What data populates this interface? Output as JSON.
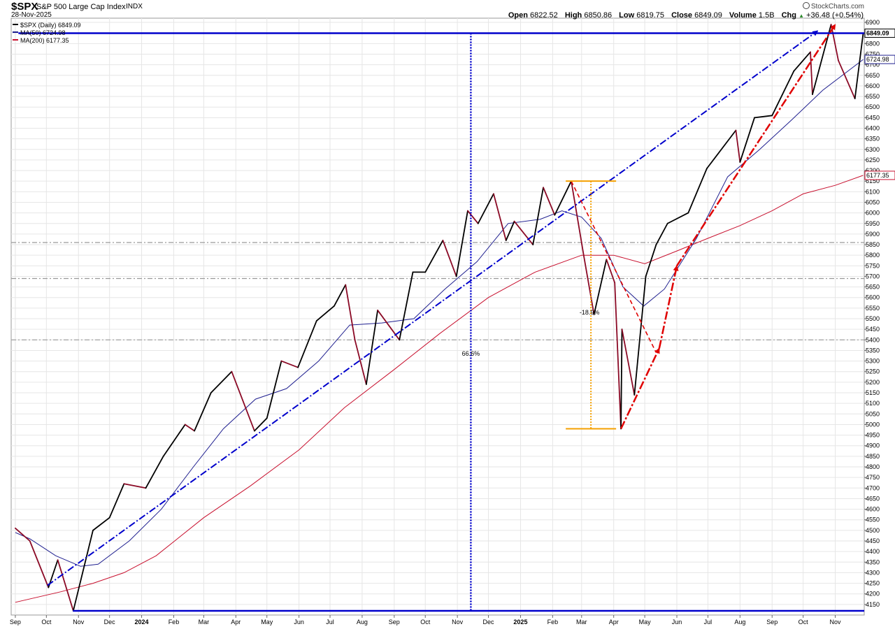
{
  "header": {
    "symbol": "$SPX",
    "description": "S&P 500 Large Cap Index",
    "exchange": "INDX",
    "date": "28-Nov-2025",
    "brand": "StockCharts.com",
    "open_label": "Open",
    "open": "6822.52",
    "high_label": "High",
    "high": "6850.86",
    "low_label": "Low",
    "low": "6819.75",
    "close_label": "Close",
    "close": "6849.09",
    "volume_label": "Volume",
    "volume": "1.5B",
    "chg_label": "Chg",
    "chg": "+36.48 (+0.54%)",
    "chg_icon": "up-triangle-icon"
  },
  "legend": [
    {
      "text": "$SPX (Daily) 6849.09",
      "color": "#000000"
    },
    {
      "text": "MA(50) 6724.98",
      "color": "#1f1f8f"
    },
    {
      "text": "MA(200) 6177.35",
      "color": "#c8102e"
    }
  ],
  "colors": {
    "price_up": "#000000",
    "price_down": "#8b0a26",
    "ma50": "#1f1f8f",
    "ma200": "#c8102e",
    "trend_blue": "#0000cc",
    "red_annot": "#e00000",
    "orange": "#f4a000",
    "grid": "#e6e6e6"
  },
  "chart_data": {
    "type": "line",
    "title": "$SPX",
    "xlabel": "",
    "ylabel": "",
    "x_ticks": [
      "Sep",
      "Oct",
      "Nov",
      "Dec",
      "2024",
      "Feb",
      "Mar",
      "Apr",
      "May",
      "Jun",
      "Jul",
      "Aug",
      "Sep",
      "Oct",
      "Nov",
      "Dec",
      "2025",
      "Feb",
      "Mar",
      "Apr",
      "May",
      "Jun",
      "Jul",
      "Aug",
      "Sep",
      "Oct",
      "Nov"
    ],
    "y_ticks": [
      "6900",
      "6850",
      "6800",
      "6750",
      "6700",
      "6650",
      "6600",
      "6550",
      "6500",
      "6450",
      "6400",
      "6350",
      "6300",
      "6250",
      "6200",
      "6150",
      "6100",
      "6050",
      "6000",
      "5950",
      "5900",
      "5850",
      "5800",
      "5750",
      "5700",
      "5650",
      "5600",
      "5550",
      "5500",
      "5450",
      "5400",
      "5350",
      "5300",
      "5250",
      "5200",
      "5150",
      "5100",
      "5050",
      "5000",
      "4950",
      "4900",
      "4850",
      "4800",
      "4750",
      "4700",
      "4650",
      "4600",
      "4550",
      "4500",
      "4450",
      "4400",
      "4350",
      "4300",
      "4250",
      "4200",
      "4150"
    ],
    "ylim": [
      4100,
      6920
    ],
    "grid": true,
    "legend_position": "top-left",
    "series": [
      {
        "name": "$SPX (Daily) 6849.09",
        "x": [
          "2023-09-01",
          "2023-09-15",
          "2023-10-03",
          "2023-10-12",
          "2023-10-27",
          "2023-11-15",
          "2023-12-01",
          "2023-12-15",
          "2024-01-05",
          "2024-01-22",
          "2024-02-12",
          "2024-02-21",
          "2024-03-08",
          "2024-03-28",
          "2024-04-19",
          "2024-05-01",
          "2024-05-15",
          "2024-05-31",
          "2024-06-18",
          "2024-07-05",
          "2024-07-16",
          "2024-07-25",
          "2024-08-05",
          "2024-08-16",
          "2024-09-06",
          "2024-09-19",
          "2024-10-01",
          "2024-10-18",
          "2024-10-31",
          "2024-11-11",
          "2024-11-21",
          "2024-12-06",
          "2024-12-18",
          "2024-12-26",
          "2025-01-13",
          "2025-01-23",
          "2025-02-03",
          "2025-02-19",
          "2025-03-03",
          "2025-03-13",
          "2025-03-25",
          "2025-04-02",
          "2025-04-08",
          "2025-04-09",
          "2025-04-21",
          "2025-05-02",
          "2025-05-12",
          "2025-05-23",
          "2025-06-12",
          "2025-06-30",
          "2025-07-28",
          "2025-08-01",
          "2025-08-15",
          "2025-09-01",
          "2025-09-22",
          "2025-10-08",
          "2025-10-10",
          "2025-10-28",
          "2025-11-04",
          "2025-11-20",
          "2025-11-28"
        ],
        "y": [
          4510,
          4450,
          4230,
          4360,
          4120,
          4500,
          4560,
          4720,
          4700,
          4850,
          5000,
          4970,
          5150,
          5250,
          4970,
          5030,
          5300,
          5270,
          5490,
          5560,
          5660,
          5400,
          5190,
          5540,
          5400,
          5720,
          5720,
          5870,
          5700,
          6010,
          5950,
          6090,
          5870,
          5960,
          5850,
          6120,
          5990,
          6150,
          5800,
          5520,
          5780,
          5670,
          4980,
          5450,
          5140,
          5700,
          5850,
          5950,
          6000,
          6210,
          6390,
          6240,
          6450,
          6460,
          6670,
          6760,
          6560,
          6890,
          6720,
          6540,
          6849.09
        ]
      },
      {
        "name": "MA(50) 6724.98",
        "x": [
          "2023-09-01",
          "2023-09-15",
          "2023-10-10",
          "2023-11-03",
          "2023-11-20",
          "2023-12-20",
          "2024-01-20",
          "2024-02-20",
          "2024-03-20",
          "2024-04-20",
          "2024-05-20",
          "2024-06-20",
          "2024-07-20",
          "2024-08-20",
          "2024-09-20",
          "2024-10-20",
          "2024-11-20",
          "2024-12-20",
          "2025-01-20",
          "2025-02-10",
          "2025-03-01",
          "2025-03-20",
          "2025-04-10",
          "2025-04-30",
          "2025-05-20",
          "2025-06-20",
          "2025-07-20",
          "2025-08-20",
          "2025-09-20",
          "2025-10-20",
          "2025-11-28"
        ],
        "y": [
          4490,
          4460,
          4380,
          4330,
          4340,
          4450,
          4600,
          4800,
          4980,
          5120,
          5170,
          5300,
          5470,
          5480,
          5500,
          5640,
          5770,
          5950,
          5970,
          6010,
          5980,
          5880,
          5650,
          5560,
          5640,
          5880,
          6170,
          6300,
          6440,
          6580,
          6724.98
        ]
      },
      {
        "name": "MA(200) 6177.35",
        "x": [
          "2023-09-01",
          "2023-10-15",
          "2023-11-15",
          "2023-12-15",
          "2024-01-15",
          "2024-03-01",
          "2024-04-15",
          "2024-06-01",
          "2024-07-15",
          "2024-09-01",
          "2024-10-15",
          "2024-12-01",
          "2025-01-15",
          "2025-03-01",
          "2025-04-01",
          "2025-05-01",
          "2025-06-01",
          "2025-07-01",
          "2025-08-01",
          "2025-09-01",
          "2025-10-01",
          "2025-11-01",
          "2025-11-28"
        ],
        "y": [
          4160,
          4210,
          4250,
          4300,
          4380,
          4560,
          4710,
          4880,
          5080,
          5260,
          5430,
          5600,
          5720,
          5800,
          5800,
          5760,
          5820,
          5880,
          5940,
          6010,
          6090,
          6130,
          6177.35
        ]
      }
    ],
    "annotations": [
      {
        "type": "horizontal-line",
        "y": 6849.09
      },
      {
        "type": "horizontal-line",
        "y": 4120
      },
      {
        "type": "vertical-line",
        "x": "2024-11-14",
        "label": "66.6%"
      },
      {
        "type": "trendline",
        "from": [
          "2023-10-02",
          4240
        ],
        "to": [
          "2025-10-15",
          6860
        ]
      },
      {
        "type": "trendline",
        "from": [
          "2025-02-19",
          6150
        ],
        "to": [
          "2025-05-12",
          5340
        ]
      },
      {
        "type": "arrow",
        "from": [
          "2025-04-08",
          4980
        ],
        "to": [
          "2025-05-15",
          5360
        ]
      },
      {
        "type": "arrow",
        "from": [
          "2025-05-15",
          5360
        ],
        "to": [
          "2025-06-01",
          5750
        ]
      },
      {
        "type": "arrow",
        "from": [
          "2025-06-01",
          5750
        ],
        "to": [
          "2025-11-01",
          6890
        ]
      },
      {
        "type": "range-bracket",
        "x": "2025-03-10",
        "from": 6150,
        "to": 4980,
        "label": "-18.9%"
      },
      {
        "type": "grey-dash",
        "y": 5860
      },
      {
        "type": "grey-dash",
        "y": 5690
      },
      {
        "type": "grey-dash",
        "y": 5400
      }
    ],
    "axis_value_labels": [
      "6849.09",
      "6724.98",
      "6177.35"
    ]
  }
}
